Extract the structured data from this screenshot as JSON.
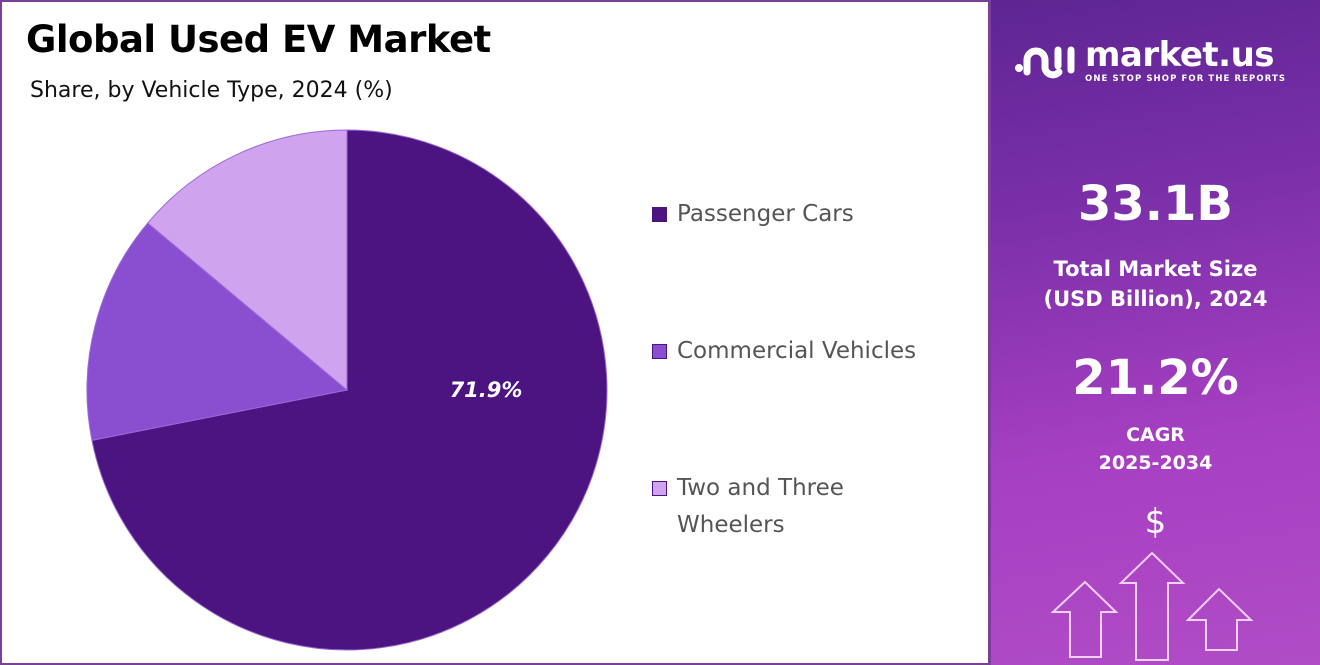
{
  "chart_data": {
    "type": "pie",
    "title": "Global Used EV Market",
    "subtitle": "Share, by Vehicle Type, 2024 (%)",
    "categories": [
      "Passenger Cars",
      "Commercial Vehicles",
      "Two and Three Wheelers"
    ],
    "values": [
      71.9,
      14.2,
      13.9
    ],
    "colors": [
      "#4b1480",
      "#8a4fd0",
      "#d0a3ee"
    ],
    "data_labels": [
      "71.9%",
      "",
      ""
    ],
    "start_angle": "12 o'clock, clockwise",
    "legend_placement": "right"
  },
  "legend": {
    "items": [
      {
        "label": "Passenger Cars"
      },
      {
        "label": "Commercial Vehicles"
      },
      {
        "label_line1": "Two and Three",
        "label_line2": "Wheelers"
      }
    ]
  },
  "panel": {
    "brand": "market.us",
    "tagline": "ONE STOP SHOP FOR THE REPORTS",
    "market_size_value": "33.1B",
    "market_size_label_1": "Total Market Size",
    "market_size_label_2": "(USD Billion), 2024",
    "cagr_value": "21.2%",
    "cagr_label_1": "CAGR",
    "cagr_label_2": "2025-2034",
    "dollar": "$",
    "icons": [
      "market-us-logo-icon",
      "dollar-icon",
      "arrow-up-icon"
    ]
  }
}
